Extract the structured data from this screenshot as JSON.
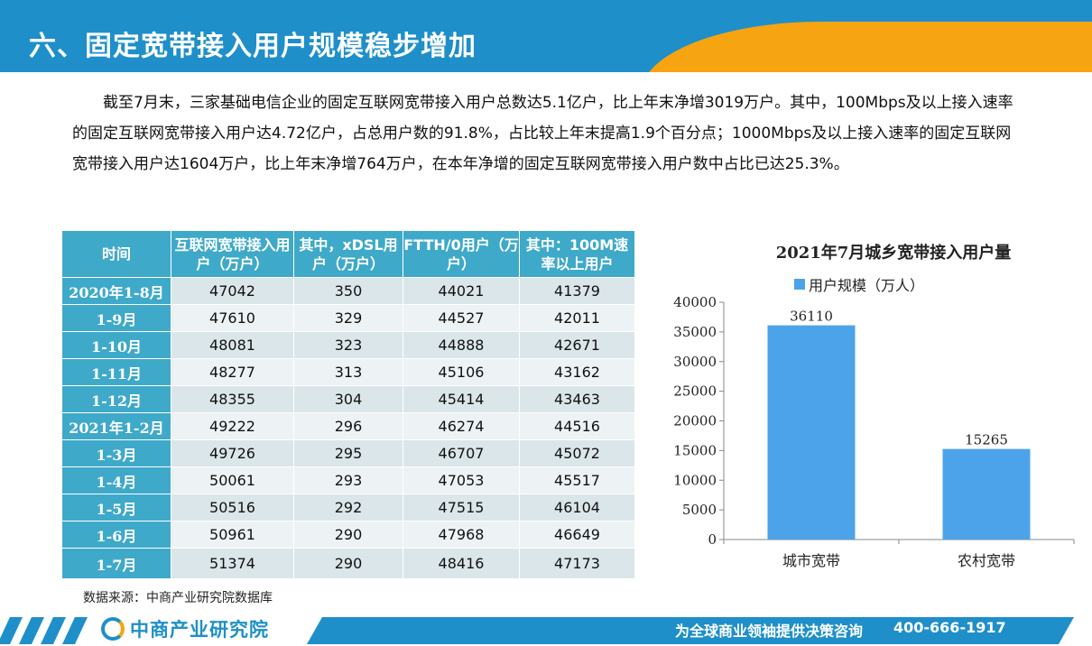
{
  "header": {
    "title": "六、固定宽带接入用户规模稳步增加"
  },
  "intro": {
    "text": "截至7月末，三家基础电信企业的固定互联网宽带接入用户总数达5.1亿户，比上年末净增3019万户。其中，100Mbps及以上接入速率的固定互联网宽带接入用户达4.72亿户，占总用户数的91.8%，占比较上年末提高1.9个百分点；1000Mbps及以上接入速率的固定互联网宽带接入用户达1604万户，比上年末净增764万户，在本年净增的固定互联网宽带接入用户数中占比已达25.3%。"
  },
  "table": {
    "headers": [
      "时间",
      "互联网宽带接入用户（万户）",
      "其中，xDSL用户（万户）",
      "FTTH/0用户（万户）",
      "其中：100M速率以上用户"
    ],
    "rows": [
      [
        "2020年1-8月",
        "47042",
        "350",
        "44021",
        "41379"
      ],
      [
        "1-9月",
        "47610",
        "329",
        "44527",
        "42011"
      ],
      [
        "1-10月",
        "48081",
        "323",
        "44888",
        "42671"
      ],
      [
        "1-11月",
        "48277",
        "313",
        "45106",
        "43162"
      ],
      [
        "1-12月",
        "48355",
        "304",
        "45414",
        "43463"
      ],
      [
        "2021年1-2月",
        "49222",
        "296",
        "46274",
        "44516"
      ],
      [
        "1-3月",
        "49726",
        "295",
        "46707",
        "45072"
      ],
      [
        "1-4月",
        "50061",
        "293",
        "47053",
        "45517"
      ],
      [
        "1-5月",
        "50516",
        "292",
        "47515",
        "46104"
      ],
      [
        "1-6月",
        "50961",
        "290",
        "47968",
        "46649"
      ],
      [
        "1-7月",
        "51374",
        "290",
        "48416",
        "47173"
      ]
    ]
  },
  "source": "数据来源：中商产业研究院数据库",
  "chart_data": {
    "type": "bar",
    "title": "2021年7月城乡宽带接入用户量",
    "categories": [
      "城市宽带",
      "农村宽带"
    ],
    "series": [
      {
        "name": "用户规模（万人）",
        "values": [
          36110,
          15265
        ]
      }
    ],
    "ylim": [
      0,
      40000
    ],
    "yticks": [
      0,
      5000,
      10000,
      15000,
      20000,
      25000,
      30000,
      35000,
      40000
    ],
    "legend_position": "top",
    "bar_color": "#4da3ea",
    "grid": false
  },
  "footer": {
    "logo": "中商产业研究院",
    "tagline": "为全球商业领袖提供决策咨询",
    "phone": "400-666-1917"
  },
  "colors": {
    "primary": "#1e8fc9",
    "accent": "#f6a411",
    "table_header": "#3fa9c9",
    "bar": "#4da3ea"
  }
}
